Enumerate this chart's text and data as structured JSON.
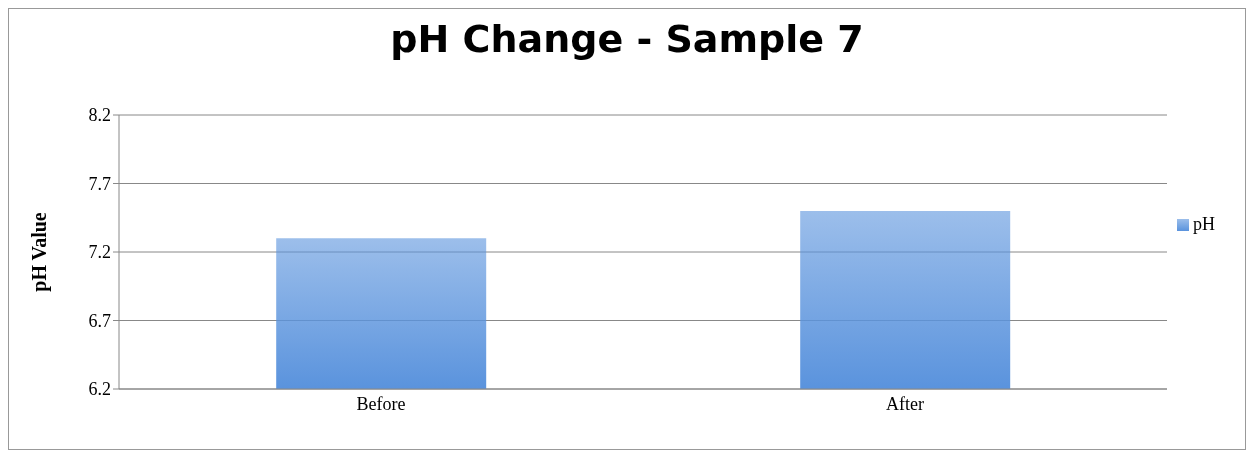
{
  "chart_data": {
    "type": "bar",
    "title": "pH Change  - Sample 7",
    "ylabel": "pH Value",
    "categories": [
      "Before",
      "After"
    ],
    "series": [
      {
        "name": "pH",
        "color": "#5a93dd",
        "values": [
          7.3,
          7.5
        ]
      }
    ],
    "ylim": [
      6.2,
      8.2
    ],
    "yticks": [
      6.2,
      6.7,
      7.2,
      7.7,
      8.2
    ],
    "grid": "y",
    "legend": "right"
  }
}
